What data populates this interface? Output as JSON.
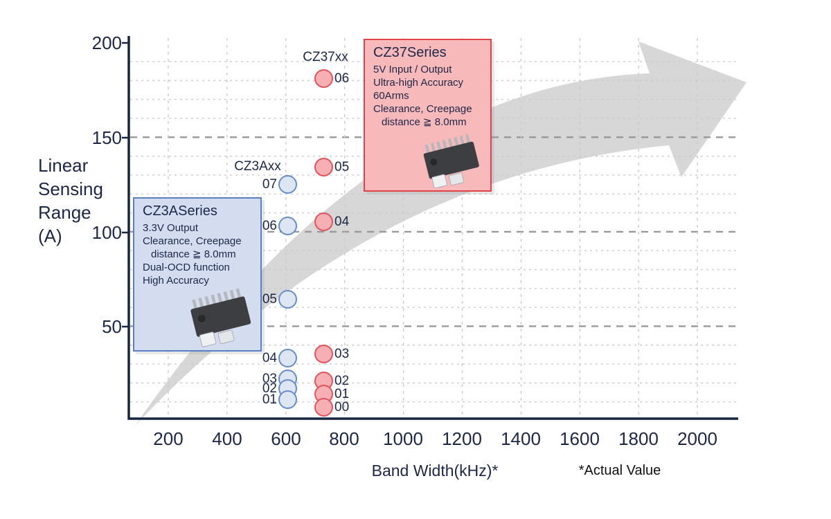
{
  "y_axis": {
    "label_lines": [
      "Linear",
      "Sensing",
      "Range",
      "(A)"
    ],
    "ticks": [
      "200",
      "150",
      "100",
      "50"
    ]
  },
  "x_axis": {
    "ticks": [
      "200",
      "400",
      "600",
      "800",
      "1000",
      "1200",
      "1400",
      "1600",
      "1800",
      "2000"
    ],
    "title": "Band Width(kHz)*",
    "note": "*Actual Value"
  },
  "boxes": {
    "cz3a": {
      "title": "CZ3ASeries",
      "lines": [
        "3.3V Output",
        "Clearance, Creepage",
        "distance ≧ 8.0mm",
        "Dual-OCD function",
        "High Accuracy"
      ]
    },
    "cz37": {
      "title": "CZ37Series",
      "lines": [
        "5V Input / Output",
        "Ultra-high Accuracy",
        "60Arms",
        "Clearance, Creepage",
        "distance ≧ 8.0mm"
      ]
    }
  },
  "colors": {
    "navy_text": "#1c2748",
    "blue_circle_border": "#638dcc",
    "blue_circle_fill": "#dee5f3",
    "red_circle_border": "#e4525a",
    "red_circle_fill": "#f6b0b3",
    "blue_box_bg": "#d4ddf0",
    "blue_box_border": "#5b7fc4",
    "red_box_bg": "#f8b9bb",
    "red_box_border": "#dd4348",
    "arrow_gray": "#d7d7d7"
  },
  "chart_data": {
    "type": "scatter",
    "xlabel": "Band Width(kHz)*",
    "ylabel": "Linear Sensing Range (A)",
    "xlim": [
      0,
      2100
    ],
    "ylim": [
      0,
      200
    ],
    "x_ticks": [
      200,
      400,
      600,
      800,
      1000,
      1200,
      1400,
      1600,
      1800,
      2000
    ],
    "y_ticks": [
      50,
      100,
      150,
      200
    ],
    "y_minor_grid_step": 10,
    "grid": true,
    "note": "*Actual Value",
    "series": [
      {
        "name": "CZ3Axx",
        "color": "blue",
        "bandwidth_khz": 600,
        "points": [
          {
            "label": "07",
            "bandwidth_khz": 600,
            "range_a": 125
          },
          {
            "label": "06",
            "bandwidth_khz": 600,
            "range_a": 103
          },
          {
            "label": "05",
            "bandwidth_khz": 600,
            "range_a": 64
          },
          {
            "label": "04",
            "bandwidth_khz": 600,
            "range_a": 33
          },
          {
            "label": "03",
            "bandwidth_khz": 600,
            "range_a": 22
          },
          {
            "label": "02",
            "bandwidth_khz": 600,
            "range_a": 17
          },
          {
            "label": "01",
            "bandwidth_khz": 600,
            "range_a": 11
          }
        ]
      },
      {
        "name": "CZ37xx",
        "color": "red",
        "bandwidth_khz": 730,
        "points": [
          {
            "label": "06",
            "bandwidth_khz": 730,
            "range_a": 181
          },
          {
            "label": "05",
            "bandwidth_khz": 730,
            "range_a": 134
          },
          {
            "label": "04",
            "bandwidth_khz": 730,
            "range_a": 105
          },
          {
            "label": "03",
            "bandwidth_khz": 730,
            "range_a": 35
          },
          {
            "label": "02",
            "bandwidth_khz": 730,
            "range_a": 21
          },
          {
            "label": "01",
            "bandwidth_khz": 730,
            "range_a": 14
          },
          {
            "label": "00",
            "bandwidth_khz": 730,
            "range_a": 7
          }
        ]
      }
    ],
    "annotations": [
      "CZ3ASeries info box",
      "CZ37Series info box",
      "gray upward trend arrow in background"
    ]
  }
}
